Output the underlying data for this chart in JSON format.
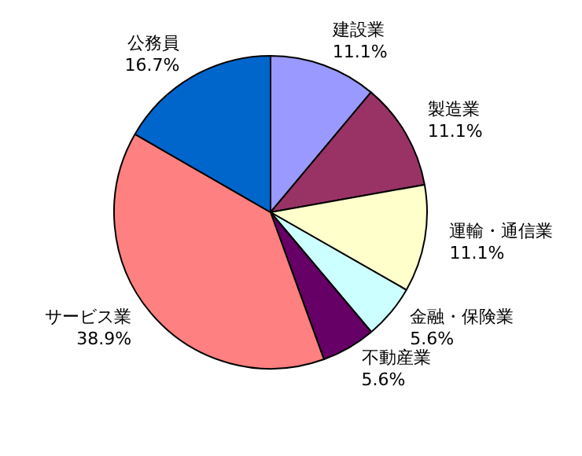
{
  "chart_data": {
    "type": "pie",
    "categories": [
      "建設業",
      "製造業",
      "運輸・通信業",
      "金融・保険業",
      "不動産業",
      "サービス業",
      "公務員"
    ],
    "values": [
      11.1,
      11.1,
      11.1,
      5.6,
      5.6,
      38.9,
      16.7
    ],
    "colors": [
      "#9999ff",
      "#993366",
      "#ffffcc",
      "#ccffff",
      "#660066",
      "#ff8080",
      "#0066cc"
    ],
    "value_labels": [
      "11.1%",
      "11.1%",
      "11.1%",
      "5.6%",
      "5.6%",
      "38.9%",
      "16.7%"
    ],
    "legend": false
  }
}
